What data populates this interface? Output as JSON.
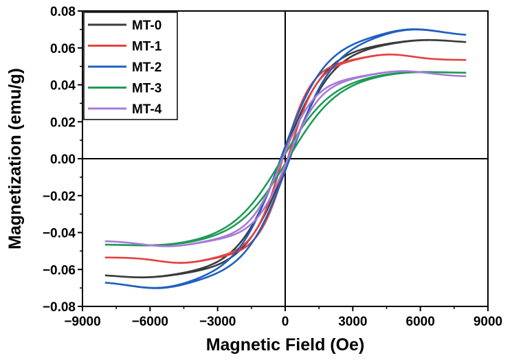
{
  "chart_data": {
    "type": "line",
    "title": "",
    "xlabel": "Magnetic Field (Oe)",
    "ylabel": "Magnetization (emu/g)",
    "xlim": [
      -9000,
      9000
    ],
    "ylim": [
      -0.08,
      0.08
    ],
    "xticks": [
      -9000,
      -6000,
      -3000,
      0,
      3000,
      6000,
      9000
    ],
    "yticks": [
      -0.08,
      -0.06,
      -0.04,
      -0.02,
      0.0,
      0.02,
      0.04,
      0.06,
      0.08
    ],
    "xtick_labels": [
      "−9000",
      "−6000",
      "−3000",
      "0",
      "3000",
      "6000",
      "9000"
    ],
    "ytick_labels": [
      "−0.08",
      "−0.06",
      "−0.04",
      "−0.02",
      "0.00",
      "0.02",
      "0.04",
      "0.06",
      "0.08"
    ],
    "grid": false,
    "legend_position": "top-left",
    "x_range": [
      -8000,
      8000
    ],
    "series": [
      {
        "name": "MT-0",
        "color": "#3c3c3c",
        "ms": 0.0625,
        "hc": 150,
        "h0": 2000,
        "bump": 0.002,
        "hpeak": 6200,
        "wpeak": 1800
      },
      {
        "name": "MT-1",
        "color": "#e5413f",
        "ms": 0.0535,
        "hc": 110,
        "h0": 1300,
        "bump": 0.003,
        "hpeak": 4600,
        "wpeak": 1500
      },
      {
        "name": "MT-2",
        "color": "#1f5fc0",
        "ms": 0.0665,
        "hc": 200,
        "h0": 2000,
        "bump": 0.004,
        "hpeak": 5600,
        "wpeak": 1800
      },
      {
        "name": "MT-3",
        "color": "#1f9a55",
        "ms": 0.0465,
        "hc": 130,
        "h0": 2300,
        "bump": 0.001,
        "hpeak": 5500,
        "wpeak": 1800
      },
      {
        "name": "MT-4",
        "color": "#a77ad8",
        "ms": 0.0445,
        "hc": 120,
        "h0": 1500,
        "bump": 0.003,
        "hpeak": 5200,
        "wpeak": 1700
      }
    ]
  }
}
